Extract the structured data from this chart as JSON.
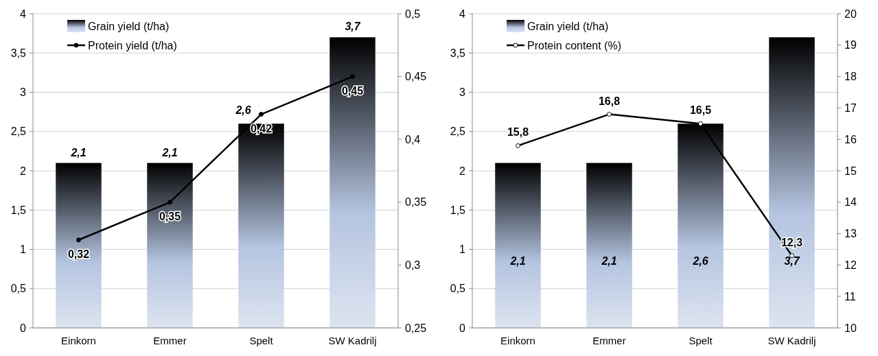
{
  "chart_data": [
    {
      "type": "bar",
      "categories": [
        "Einkorn",
        "Emmer",
        "Spelt",
        "SW Kadrilj"
      ],
      "ylim": [
        0,
        4
      ],
      "yticks": [
        0,
        {
          "value": 0.5,
          "label": "0,5"
        },
        1,
        {
          "value": 1.5,
          "label": "1,5"
        },
        2,
        {
          "value": 2.5,
          "label": "2,5"
        },
        3,
        {
          "value": 3.5,
          "label": "3,5"
        },
        4
      ],
      "y2lim": [
        0.25,
        0.5
      ],
      "y2ticks": [
        {
          "value": 0.25,
          "label": "0,25"
        },
        {
          "value": 0.3,
          "label": "0,3"
        },
        {
          "value": 0.35,
          "label": "0,35"
        },
        {
          "value": 0.4,
          "label": "0,4"
        },
        {
          "value": 0.45,
          "label": "0,45"
        },
        {
          "value": 0.5,
          "label": "0,5"
        }
      ],
      "grid": "y",
      "legend": "top left",
      "series": [
        {
          "name": "Grain yield (t/ha)",
          "type": "bar",
          "color": "#000000",
          "values": [
            2.1,
            2.1,
            2.6,
            3.7
          ],
          "value_labels": [
            "2,1",
            "2,1",
            "2,6",
            "3,7"
          ]
        },
        {
          "name": "Protein yield (t/ha)",
          "type": "line",
          "axis": "y2",
          "color": "#000000",
          "marker": "circle",
          "values": [
            0.32,
            0.35,
            0.42,
            0.45
          ],
          "value_labels": [
            "0,32",
            "0,35",
            "0,42",
            "0,45"
          ]
        }
      ]
    },
    {
      "type": "bar",
      "categories": [
        "Einkorn",
        "Emmer",
        "Spelt",
        "SW Kadrilj"
      ],
      "ylim": [
        0,
        4
      ],
      "yticks": [
        0,
        {
          "value": 0.5,
          "label": "0,5"
        },
        1,
        {
          "value": 1.5,
          "label": "1,5"
        },
        2,
        {
          "value": 2.5,
          "label": "2,5"
        },
        3,
        {
          "value": 3.5,
          "label": "3,5"
        },
        4
      ],
      "y2lim": [
        10,
        20
      ],
      "y2ticks": [
        10,
        11,
        12,
        13,
        14,
        15,
        16,
        17,
        18,
        19,
        20
      ],
      "grid": "y",
      "legend": "top left",
      "series": [
        {
          "name": "Grain yield (t/ha)",
          "type": "bar",
          "color": "#000000",
          "values": [
            2.1,
            2.1,
            2.6,
            3.7
          ],
          "value_labels": [
            "2,1",
            "2,1",
            "2,6",
            "3,7"
          ]
        },
        {
          "name": "Protein content (%)",
          "type": "line",
          "axis": "y2",
          "color": "#000000",
          "marker": "circle",
          "values": [
            15.8,
            16.8,
            16.5,
            12.3
          ],
          "value_labels": [
            "15,8",
            "16,8",
            "16,5",
            "12,3"
          ]
        }
      ]
    }
  ]
}
